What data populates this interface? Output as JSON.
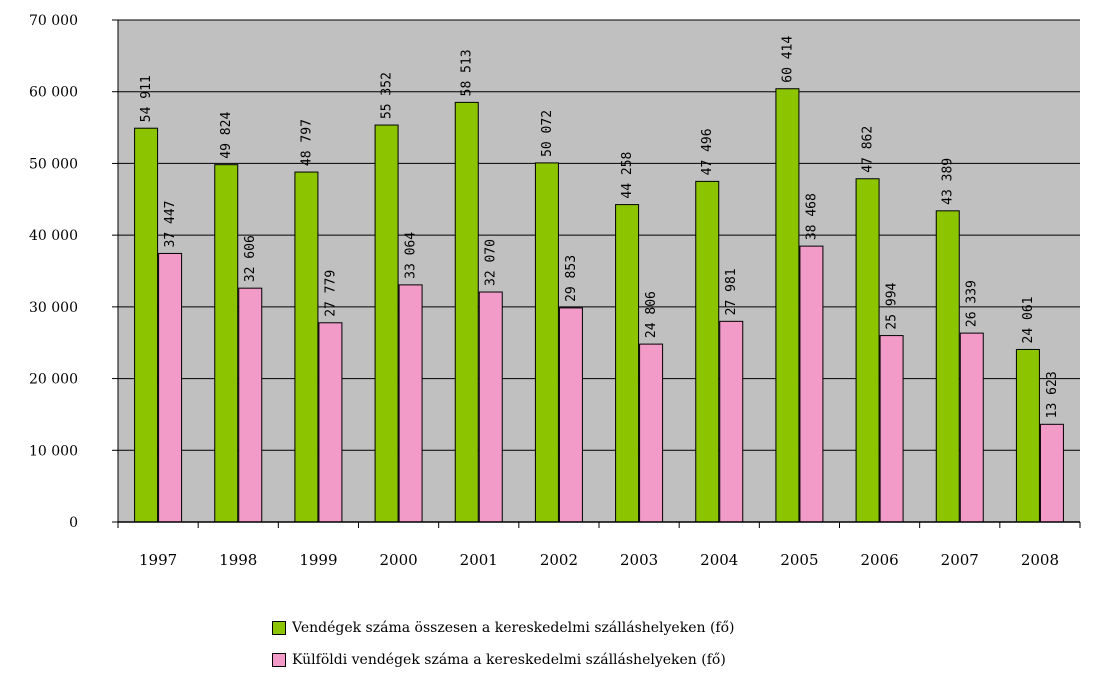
{
  "chart_data": {
    "type": "bar",
    "categories": [
      "1997",
      "1998",
      "1999",
      "2000",
      "2001",
      "2002",
      "2003",
      "2004",
      "2005",
      "2006",
      "2007",
      "2008"
    ],
    "series": [
      {
        "name": "Vendégek száma összesen a kereskedelmi szálláshelyeken (fő)",
        "values": [
          54911,
          49824,
          48797,
          55352,
          58513,
          50072,
          44258,
          47496,
          60414,
          47862,
          43389,
          24061
        ],
        "labels": [
          "54 911",
          "49 824",
          "48 797",
          "55 352",
          "58 513",
          "50 072",
          "44 258",
          "47 496",
          "60 414",
          "47 862",
          "43 389",
          "24 061"
        ],
        "color": "#8cc400"
      },
      {
        "name": "Külföldi vendégek száma a kereskedelmi szálláshelyeken (fő)",
        "values": [
          37447,
          32606,
          27779,
          33064,
          32070,
          29853,
          24806,
          27981,
          38468,
          25994,
          26339,
          13623
        ],
        "labels": [
          "37 447",
          "32 606",
          "27 779",
          "33 064",
          "32 070",
          "29 853",
          "24 806",
          "27 981",
          "38 468",
          "25 994",
          "26 339",
          "13 623"
        ],
        "color": "#f29ac8"
      }
    ],
    "yticks": [
      "0",
      "10 000",
      "20 000",
      "30 000",
      "40 000",
      "50 000",
      "60 000",
      "70 000"
    ],
    "ylim": [
      0,
      70000
    ],
    "plot_background": "#c0c0c0",
    "grid": true,
    "legend_position": "bottom",
    "title": "",
    "xlabel": "",
    "ylabel": ""
  }
}
